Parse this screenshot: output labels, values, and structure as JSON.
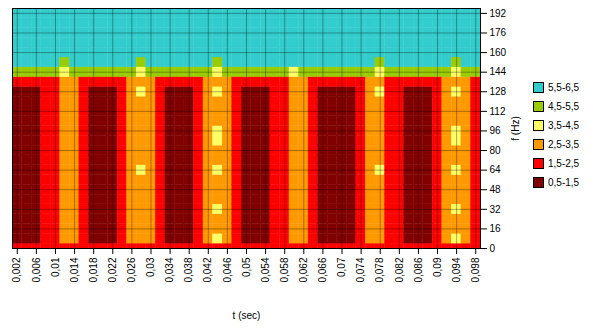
{
  "chart_data": {
    "type": "heatmap",
    "xlabel": "t (sec)",
    "ylabel": "f (Hz)",
    "x": [
      0.002,
      0.004,
      0.006,
      0.008,
      0.01,
      0.012,
      0.014,
      0.016,
      0.018,
      0.02,
      0.022,
      0.024,
      0.026,
      0.028,
      0.03,
      0.032,
      0.034,
      0.036,
      0.038,
      0.04,
      0.042,
      0.044,
      0.046,
      0.048,
      0.05,
      0.052,
      0.054,
      0.056,
      0.058,
      0.06,
      0.062,
      0.064,
      0.066,
      0.068,
      0.07,
      0.072,
      0.074,
      0.076,
      0.078,
      0.08,
      0.082,
      0.084,
      0.086,
      0.088,
      0.09,
      0.092,
      0.094,
      0.096,
      0.098
    ],
    "y": [
      0,
      8,
      16,
      24,
      32,
      40,
      48,
      56,
      64,
      72,
      80,
      88,
      96,
      104,
      112,
      120,
      128,
      136,
      144,
      152,
      160,
      168,
      176,
      184,
      192
    ],
    "z": [
      [
        2,
        2,
        2,
        2,
        2,
        2,
        2,
        2,
        2,
        2,
        2,
        2,
        2,
        2,
        2,
        2,
        2,
        2,
        2,
        2,
        2,
        2,
        2,
        2,
        2,
        2,
        2,
        2,
        2,
        2,
        2,
        2,
        2,
        2,
        2,
        2,
        2,
        2,
        2,
        2,
        2,
        2,
        2,
        2,
        2,
        2,
        2,
        2,
        2
      ],
      [
        1,
        1,
        1,
        2,
        2,
        3,
        3,
        2,
        1,
        1,
        1,
        2,
        3,
        3,
        3,
        2,
        1,
        1,
        1,
        2,
        3,
        4,
        3,
        2,
        1,
        1,
        1,
        2,
        2,
        3,
        3,
        2,
        1,
        1,
        1,
        1,
        2,
        3,
        3,
        2,
        2,
        1,
        1,
        1,
        2,
        3,
        4,
        3,
        2
      ],
      [
        1,
        1,
        1,
        2,
        2,
        3,
        3,
        2,
        1,
        1,
        1,
        2,
        3,
        3,
        3,
        2,
        1,
        1,
        1,
        2,
        3,
        3,
        3,
        2,
        1,
        1,
        1,
        2,
        2,
        3,
        3,
        2,
        1,
        1,
        1,
        1,
        2,
        3,
        3,
        2,
        2,
        1,
        1,
        1,
        2,
        3,
        3,
        3,
        2
      ],
      [
        1,
        1,
        1,
        2,
        2,
        3,
        3,
        2,
        1,
        1,
        1,
        2,
        3,
        3,
        3,
        2,
        1,
        1,
        1,
        2,
        3,
        3,
        3,
        2,
        1,
        1,
        1,
        2,
        2,
        3,
        3,
        2,
        1,
        1,
        1,
        1,
        2,
        3,
        3,
        2,
        2,
        1,
        1,
        1,
        2,
        3,
        3,
        3,
        2
      ],
      [
        1,
        1,
        1,
        2,
        2,
        3,
        3,
        2,
        1,
        1,
        1,
        2,
        3,
        3,
        3,
        2,
        1,
        1,
        1,
        2,
        3,
        4,
        3,
        2,
        1,
        1,
        1,
        2,
        2,
        3,
        3,
        2,
        1,
        1,
        1,
        1,
        2,
        3,
        3,
        2,
        2,
        1,
        1,
        1,
        2,
        3,
        4,
        3,
        2
      ],
      [
        1,
        1,
        1,
        2,
        2,
        3,
        3,
        2,
        1,
        1,
        1,
        2,
        3,
        3,
        3,
        2,
        1,
        1,
        1,
        2,
        3,
        3,
        3,
        2,
        1,
        1,
        1,
        2,
        2,
        3,
        3,
        2,
        1,
        1,
        1,
        1,
        2,
        3,
        3,
        2,
        2,
        1,
        1,
        1,
        2,
        3,
        3,
        3,
        2
      ],
      [
        1,
        1,
        1,
        2,
        2,
        3,
        3,
        2,
        1,
        1,
        1,
        2,
        3,
        3,
        3,
        2,
        1,
        1,
        1,
        2,
        3,
        3,
        3,
        2,
        1,
        1,
        1,
        2,
        2,
        3,
        3,
        2,
        1,
        1,
        1,
        1,
        2,
        3,
        3,
        2,
        2,
        1,
        1,
        1,
        2,
        3,
        3,
        3,
        2
      ],
      [
        1,
        1,
        1,
        2,
        2,
        3,
        3,
        2,
        1,
        1,
        1,
        2,
        3,
        3,
        3,
        2,
        1,
        1,
        1,
        2,
        3,
        3,
        3,
        2,
        1,
        1,
        1,
        2,
        2,
        3,
        3,
        2,
        1,
        1,
        1,
        1,
        2,
        3,
        3,
        2,
        2,
        1,
        1,
        1,
        2,
        3,
        3,
        3,
        2
      ],
      [
        1,
        1,
        1,
        2,
        2,
        3,
        3,
        2,
        1,
        1,
        1,
        2,
        3,
        4,
        3,
        2,
        1,
        1,
        1,
        2,
        3,
        4,
        3,
        2,
        1,
        1,
        1,
        2,
        2,
        3,
        3,
        2,
        1,
        1,
        1,
        1,
        2,
        3,
        4,
        2,
        2,
        1,
        1,
        1,
        2,
        3,
        4,
        3,
        2
      ],
      [
        1,
        1,
        1,
        2,
        2,
        3,
        3,
        2,
        1,
        1,
        1,
        2,
        3,
        3,
        3,
        2,
        1,
        1,
        1,
        2,
        3,
        3,
        3,
        2,
        1,
        1,
        1,
        2,
        2,
        3,
        3,
        2,
        1,
        1,
        1,
        1,
        2,
        3,
        3,
        2,
        2,
        1,
        1,
        1,
        2,
        3,
        3,
        3,
        2
      ],
      [
        1,
        1,
        1,
        2,
        2,
        3,
        3,
        2,
        1,
        1,
        1,
        2,
        3,
        3,
        3,
        2,
        1,
        1,
        1,
        2,
        3,
        3,
        3,
        2,
        1,
        1,
        1,
        2,
        2,
        3,
        3,
        2,
        1,
        1,
        1,
        1,
        2,
        3,
        3,
        2,
        2,
        1,
        1,
        1,
        2,
        3,
        3,
        3,
        2
      ],
      [
        1,
        1,
        1,
        2,
        2,
        3,
        3,
        2,
        1,
        1,
        1,
        2,
        3,
        3,
        3,
        2,
        1,
        1,
        1,
        2,
        3,
        4,
        3,
        2,
        1,
        1,
        1,
        2,
        2,
        3,
        3,
        2,
        1,
        1,
        1,
        1,
        2,
        3,
        3,
        2,
        2,
        1,
        1,
        1,
        2,
        3,
        4,
        3,
        2
      ],
      [
        1,
        1,
        1,
        2,
        2,
        3,
        3,
        2,
        1,
        1,
        1,
        2,
        3,
        3,
        3,
        2,
        1,
        1,
        1,
        2,
        3,
        4,
        3,
        2,
        1,
        1,
        1,
        2,
        2,
        3,
        3,
        2,
        1,
        1,
        1,
        1,
        2,
        3,
        3,
        2,
        2,
        1,
        1,
        1,
        2,
        3,
        4,
        3,
        2
      ],
      [
        1,
        1,
        1,
        2,
        2,
        3,
        3,
        2,
        1,
        1,
        1,
        2,
        3,
        3,
        3,
        2,
        1,
        1,
        1,
        2,
        3,
        3,
        3,
        2,
        1,
        1,
        1,
        2,
        2,
        3,
        3,
        2,
        1,
        1,
        1,
        1,
        2,
        3,
        3,
        2,
        2,
        1,
        1,
        1,
        2,
        3,
        3,
        3,
        2
      ],
      [
        1,
        1,
        1,
        2,
        2,
        3,
        3,
        2,
        1,
        1,
        1,
        2,
        3,
        3,
        3,
        2,
        1,
        1,
        1,
        2,
        3,
        3,
        3,
        2,
        1,
        1,
        1,
        2,
        2,
        3,
        3,
        2,
        1,
        1,
        1,
        1,
        2,
        3,
        3,
        2,
        2,
        1,
        1,
        1,
        2,
        3,
        3,
        3,
        2
      ],
      [
        1,
        1,
        1,
        2,
        2,
        3,
        3,
        2,
        1,
        1,
        1,
        2,
        3,
        3,
        3,
        2,
        1,
        1,
        1,
        2,
        3,
        3,
        3,
        2,
        1,
        1,
        1,
        2,
        2,
        3,
        3,
        2,
        1,
        1,
        1,
        1,
        2,
        3,
        3,
        2,
        2,
        1,
        1,
        1,
        2,
        3,
        3,
        3,
        2
      ],
      [
        1,
        1,
        1,
        2,
        2,
        3,
        3,
        2,
        1,
        1,
        1,
        2,
        3,
        4,
        3,
        2,
        1,
        1,
        1,
        2,
        3,
        4,
        3,
        2,
        1,
        1,
        1,
        2,
        2,
        3,
        3,
        2,
        1,
        1,
        1,
        1,
        2,
        3,
        4,
        2,
        2,
        1,
        1,
        1,
        2,
        3,
        4,
        3,
        2
      ],
      [
        2,
        2,
        2,
        2,
        2,
        3,
        3,
        2,
        2,
        2,
        2,
        2,
        3,
        3,
        3,
        2,
        2,
        2,
        2,
        2,
        3,
        3,
        3,
        2,
        2,
        2,
        2,
        2,
        2,
        3,
        3,
        2,
        2,
        2,
        2,
        2,
        2,
        3,
        3,
        2,
        2,
        2,
        2,
        2,
        2,
        3,
        3,
        3,
        2
      ],
      [
        5,
        5,
        5,
        5,
        5,
        4,
        5,
        5,
        5,
        5,
        5,
        5,
        5,
        4,
        5,
        5,
        5,
        5,
        5,
        5,
        5,
        4,
        5,
        5,
        5,
        5,
        5,
        5,
        5,
        4,
        5,
        5,
        5,
        5,
        5,
        5,
        5,
        5,
        4,
        5,
        5,
        5,
        5,
        5,
        5,
        5,
        4,
        5,
        5
      ],
      [
        6,
        6,
        6,
        6,
        6,
        5,
        6,
        6,
        6,
        6,
        6,
        6,
        6,
        5,
        6,
        6,
        6,
        6,
        6,
        6,
        6,
        5,
        6,
        6,
        6,
        6,
        6,
        6,
        6,
        6,
        6,
        6,
        6,
        6,
        6,
        6,
        6,
        6,
        5,
        6,
        6,
        6,
        6,
        6,
        6,
        6,
        5,
        6,
        6
      ],
      [
        6,
        6,
        6,
        6,
        6,
        6,
        6,
        6,
        6,
        6,
        6,
        6,
        6,
        6,
        6,
        6,
        6,
        6,
        6,
        6,
        6,
        6,
        6,
        6,
        6,
        6,
        6,
        6,
        6,
        6,
        6,
        6,
        6,
        6,
        6,
        6,
        6,
        6,
        6,
        6,
        6,
        6,
        6,
        6,
        6,
        6,
        6,
        6,
        6
      ],
      [
        6,
        6,
        6,
        6,
        6,
        6,
        6,
        6,
        6,
        6,
        6,
        6,
        6,
        6,
        6,
        6,
        6,
        6,
        6,
        6,
        6,
        6,
        6,
        6,
        6,
        6,
        6,
        6,
        6,
        6,
        6,
        6,
        6,
        6,
        6,
        6,
        6,
        6,
        6,
        6,
        6,
        6,
        6,
        6,
        6,
        6,
        6,
        6,
        6
      ],
      [
        6,
        6,
        6,
        6,
        6,
        6,
        6,
        6,
        6,
        6,
        6,
        6,
        6,
        6,
        6,
        6,
        6,
        6,
        6,
        6,
        6,
        6,
        6,
        6,
        6,
        6,
        6,
        6,
        6,
        6,
        6,
        6,
        6,
        6,
        6,
        6,
        6,
        6,
        6,
        6,
        6,
        6,
        6,
        6,
        6,
        6,
        6,
        6,
        6
      ],
      [
        6,
        6,
        6,
        6,
        6,
        6,
        6,
        6,
        6,
        6,
        6,
        6,
        6,
        6,
        6,
        6,
        6,
        6,
        6,
        6,
        6,
        6,
        6,
        6,
        6,
        6,
        6,
        6,
        6,
        6,
        6,
        6,
        6,
        6,
        6,
        6,
        6,
        6,
        6,
        6,
        6,
        6,
        6,
        6,
        6,
        6,
        6,
        6,
        6
      ],
      [
        6,
        6,
        6,
        6,
        6,
        6,
        6,
        6,
        6,
        6,
        6,
        6,
        6,
        6,
        6,
        6,
        6,
        6,
        6,
        6,
        6,
        6,
        6,
        6,
        6,
        6,
        6,
        6,
        6,
        6,
        6,
        6,
        6,
        6,
        6,
        6,
        6,
        6,
        6,
        6,
        6,
        6,
        6,
        6,
        6,
        6,
        6,
        6,
        6
      ]
    ],
    "xlim": [
      0.001,
      0.099
    ],
    "ylim": [
      0,
      196
    ],
    "xticks": [
      {
        "value": 0.002,
        "label": "0,002"
      },
      {
        "value": 0.006,
        "label": "0,006"
      },
      {
        "value": 0.01,
        "label": "0,01"
      },
      {
        "value": 0.014,
        "label": "0,014"
      },
      {
        "value": 0.018,
        "label": "0,018"
      },
      {
        "value": 0.022,
        "label": "0,022"
      },
      {
        "value": 0.026,
        "label": "0,026"
      },
      {
        "value": 0.03,
        "label": "0,03"
      },
      {
        "value": 0.034,
        "label": "0,034"
      },
      {
        "value": 0.038,
        "label": "0,038"
      },
      {
        "value": 0.042,
        "label": "0,042"
      },
      {
        "value": 0.046,
        "label": "0,046"
      },
      {
        "value": 0.05,
        "label": "0,05"
      },
      {
        "value": 0.054,
        "label": "0,054"
      },
      {
        "value": 0.058,
        "label": "0,058"
      },
      {
        "value": 0.062,
        "label": "0,062"
      },
      {
        "value": 0.066,
        "label": "0,066"
      },
      {
        "value": 0.07,
        "label": "0,07"
      },
      {
        "value": 0.074,
        "label": "0,074"
      },
      {
        "value": 0.078,
        "label": "0,078"
      },
      {
        "value": 0.082,
        "label": "0,082"
      },
      {
        "value": 0.086,
        "label": "0,086"
      },
      {
        "value": 0.09,
        "label": "0,09"
      },
      {
        "value": 0.094,
        "label": "0,094"
      },
      {
        "value": 0.098,
        "label": "0,098"
      }
    ],
    "yticks": [
      0,
      16,
      32,
      48,
      64,
      80,
      96,
      112,
      128,
      144,
      160,
      176,
      192
    ],
    "grid": true,
    "legend": "right",
    "levels": [
      {
        "range": [
          5.5,
          6.5
        ],
        "label": "5,5-6,5",
        "color": "#33CCCC"
      },
      {
        "range": [
          4.5,
          5.5
        ],
        "label": "4,5-5,5",
        "color": "#99CC00"
      },
      {
        "range": [
          3.5,
          4.5
        ],
        "label": "3,5-4,5",
        "color": "#FFFF66"
      },
      {
        "range": [
          2.5,
          3.5
        ],
        "label": "2,5-3,5",
        "color": "#FF9900"
      },
      {
        "range": [
          1.5,
          2.5
        ],
        "label": "1,5-2,5",
        "color": "#FF0000"
      },
      {
        "range": [
          0.5,
          1.5
        ],
        "label": "0,5-1,5",
        "color": "#800000"
      }
    ]
  }
}
